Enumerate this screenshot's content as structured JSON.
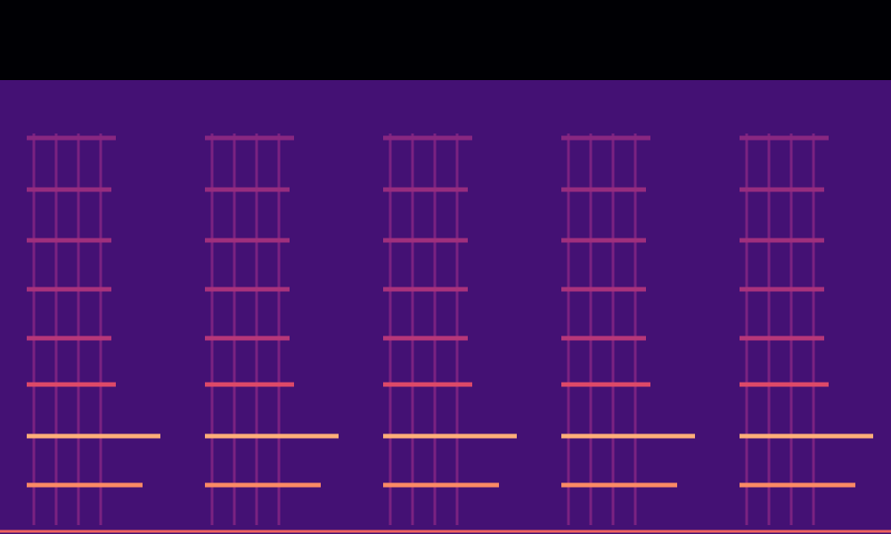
{
  "chart_data": {
    "type": "spectrogram",
    "xlim": [
      0,
      1000
    ],
    "ylim": [
      0,
      600
    ],
    "tick_labels": false,
    "grid": false,
    "intensity_range": [
      -90,
      0
    ],
    "noise_floor": {
      "y": [
        0,
        510
      ],
      "level": -70
    },
    "baseline": {
      "y": 3,
      "x": [
        0,
        1000
      ],
      "level": -30
    },
    "harmonics": [
      {
        "y": 55,
        "level": -22,
        "segments": [
          [
            30,
            160
          ],
          [
            230,
            360
          ],
          [
            430,
            560
          ],
          [
            630,
            760
          ],
          [
            830,
            960
          ]
        ]
      },
      {
        "y": 110,
        "level": -15,
        "segments": [
          [
            30,
            180
          ],
          [
            230,
            380
          ],
          [
            430,
            580
          ],
          [
            630,
            780
          ],
          [
            830,
            980
          ]
        ]
      },
      {
        "y": 168,
        "level": -36,
        "segments": [
          [
            30,
            130
          ],
          [
            230,
            330
          ],
          [
            430,
            530
          ],
          [
            630,
            730
          ],
          [
            830,
            930
          ]
        ]
      },
      {
        "y": 220,
        "level": -45,
        "segments": [
          [
            30,
            125
          ],
          [
            230,
            325
          ],
          [
            430,
            525
          ],
          [
            630,
            725
          ],
          [
            830,
            925
          ]
        ]
      },
      {
        "y": 275,
        "level": -48,
        "segments": [
          [
            30,
            125
          ],
          [
            230,
            325
          ],
          [
            430,
            525
          ],
          [
            630,
            725
          ],
          [
            830,
            925
          ]
        ]
      },
      {
        "y": 330,
        "level": -50,
        "segments": [
          [
            30,
            125
          ],
          [
            230,
            325
          ],
          [
            430,
            525
          ],
          [
            630,
            725
          ],
          [
            830,
            925
          ]
        ]
      },
      {
        "y": 387,
        "level": -52,
        "segments": [
          [
            30,
            125
          ],
          [
            230,
            325
          ],
          [
            430,
            525
          ],
          [
            630,
            725
          ],
          [
            830,
            925
          ]
        ]
      },
      {
        "y": 445,
        "level": -55,
        "segments": [
          [
            30,
            130
          ],
          [
            230,
            330
          ],
          [
            430,
            530
          ],
          [
            630,
            730
          ],
          [
            830,
            930
          ]
        ]
      }
    ],
    "pulses": {
      "x": [
        38,
        63,
        88,
        113,
        238,
        263,
        288,
        313,
        438,
        463,
        488,
        513,
        638,
        663,
        688,
        713,
        838,
        863,
        888,
        913
      ],
      "y": [
        10,
        450
      ],
      "level": -58
    }
  }
}
